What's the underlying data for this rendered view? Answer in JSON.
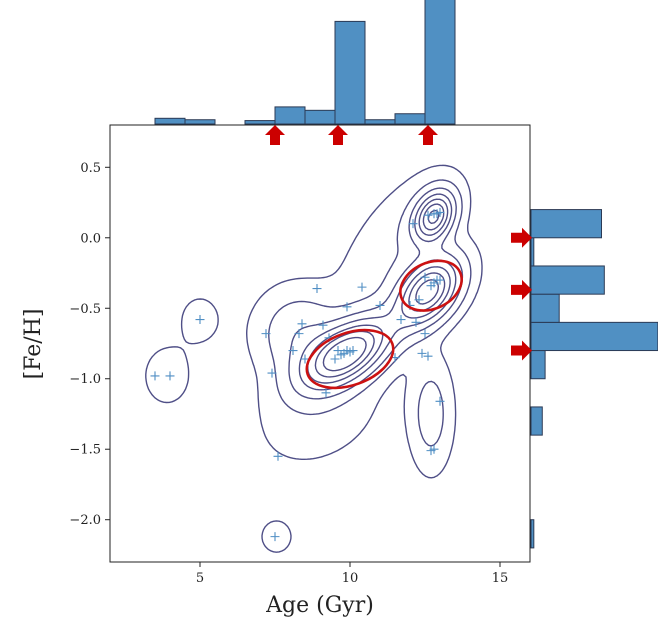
{
  "chart_data": {
    "type": "scatter",
    "subtype": "joint-plot-with-kde-contours-and-marginal-histograms",
    "xlabel": "Age (Gyr)",
    "ylabel": "[Fe/H]",
    "xlim": [
      2,
      16
    ],
    "ylim": [
      -2.3,
      0.8
    ],
    "x_ticks": [
      5,
      10,
      15
    ],
    "x_tick_labels": [
      "5",
      "10",
      "15"
    ],
    "y_ticks": [
      0.5,
      0.0,
      -0.5,
      -1.0,
      -1.5,
      -2.0
    ],
    "y_tick_labels": [
      "0.5",
      "0.0",
      "−0.5",
      "−1.0",
      "−1.5",
      "−2.0"
    ],
    "points": [
      {
        "x": 3.5,
        "y": -0.98
      },
      {
        "x": 4.0,
        "y": -0.98
      },
      {
        "x": 5.0,
        "y": -0.58
      },
      {
        "x": 7.2,
        "y": -0.68
      },
      {
        "x": 7.4,
        "y": -0.96
      },
      {
        "x": 7.6,
        "y": -1.55
      },
      {
        "x": 7.5,
        "y": -2.12
      },
      {
        "x": 8.1,
        "y": -0.8
      },
      {
        "x": 8.3,
        "y": -0.68
      },
      {
        "x": 8.4,
        "y": -0.61
      },
      {
        "x": 8.5,
        "y": -0.86
      },
      {
        "x": 8.9,
        "y": -0.36
      },
      {
        "x": 9.1,
        "y": -0.62
      },
      {
        "x": 9.3,
        "y": -0.71
      },
      {
        "x": 9.5,
        "y": -0.86
      },
      {
        "x": 9.6,
        "y": -0.8
      },
      {
        "x": 9.7,
        "y": -0.83
      },
      {
        "x": 9.8,
        "y": -0.82
      },
      {
        "x": 9.9,
        "y": -0.8
      },
      {
        "x": 10.0,
        "y": -0.81
      },
      {
        "x": 10.1,
        "y": -0.8
      },
      {
        "x": 9.9,
        "y": -0.49
      },
      {
        "x": 10.4,
        "y": -0.35
      },
      {
        "x": 9.2,
        "y": -1.1
      },
      {
        "x": 11.0,
        "y": -0.48
      },
      {
        "x": 11.5,
        "y": -0.85
      },
      {
        "x": 11.7,
        "y": -0.58
      },
      {
        "x": 12.0,
        "y": -0.48
      },
      {
        "x": 12.1,
        "y": 0.1
      },
      {
        "x": 12.2,
        "y": -0.6
      },
      {
        "x": 12.3,
        "y": -0.44
      },
      {
        "x": 12.4,
        "y": -0.82
      },
      {
        "x": 12.5,
        "y": -0.68
      },
      {
        "x": 12.6,
        "y": 0.16
      },
      {
        "x": 12.7,
        "y": -0.34
      },
      {
        "x": 12.8,
        "y": -0.32
      },
      {
        "x": 12.9,
        "y": -0.3
      },
      {
        "x": 13.0,
        "y": -0.3
      },
      {
        "x": 12.8,
        "y": 0.17
      },
      {
        "x": 12.9,
        "y": 0.17
      },
      {
        "x": 13.0,
        "y": 0.18
      },
      {
        "x": 12.6,
        "y": -0.84
      },
      {
        "x": 12.8,
        "y": -1.5
      },
      {
        "x": 12.7,
        "y": -1.51
      },
      {
        "x": 13.0,
        "y": -1.16
      },
      {
        "x": 12.5,
        "y": -0.28
      }
    ],
    "marginal_x_histogram": {
      "bin_edges": [
        3.5,
        4.5,
        5.5,
        6.5,
        7.5,
        8.5,
        9.5,
        10.5,
        11.5,
        12.5,
        13.5
      ],
      "counts": [
        2,
        1.5,
        0,
        1.2,
        6,
        4.8,
        36,
        1.5,
        3.6,
        44
      ]
    },
    "marginal_y_histogram": {
      "bin_edges": [
        -2.2,
        -2.0,
        -1.8,
        -1.6,
        -1.4,
        -1.2,
        -1.0,
        -0.8,
        -0.6,
        -0.4,
        -0.2,
        0.0,
        0.2
      ],
      "counts": [
        1,
        0,
        0,
        0,
        4,
        0,
        5,
        45,
        10,
        26,
        1,
        25
      ]
    },
    "highlighted_clusters": [
      {
        "center_x": 10.0,
        "center_y": -0.86,
        "label": ""
      },
      {
        "center_x": 12.7,
        "center_y": -0.34,
        "label": ""
      }
    ],
    "marker_arrows_x": [
      7.5,
      9.6,
      12.6
    ],
    "marker_arrows_y": [
      0.0,
      -0.37,
      -0.8
    ]
  },
  "colors": {
    "hist": "#5090c3",
    "hist_edge": "#2b3a55",
    "contour": "#4f4f87",
    "points": "#4f8ec4",
    "highlight": "#cc1111",
    "arrow": "#cc0000"
  }
}
